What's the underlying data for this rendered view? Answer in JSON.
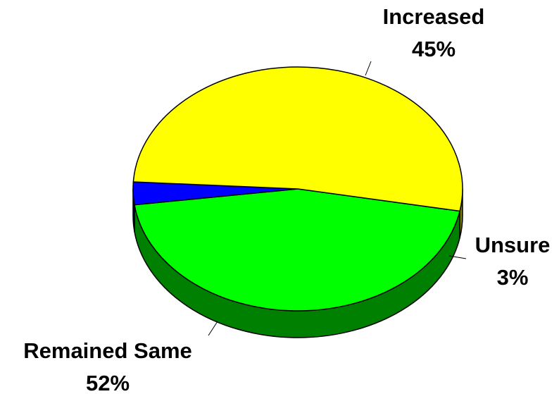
{
  "chart_data": {
    "type": "pie",
    "style": "3d",
    "title": "",
    "slices": [
      {
        "label": "Increased",
        "value": 45,
        "value_label": "45%",
        "color": "#00FF00",
        "side_color": "#008000"
      },
      {
        "label": "Unsure",
        "value": 3,
        "value_label": "3%",
        "color": "#0000FF",
        "side_color": "#000080"
      },
      {
        "label": "Remained Same",
        "value": 52,
        "value_label": "52%",
        "color": "#FFFF00",
        "side_color": "#808000"
      }
    ],
    "outline_color": "#000000"
  }
}
